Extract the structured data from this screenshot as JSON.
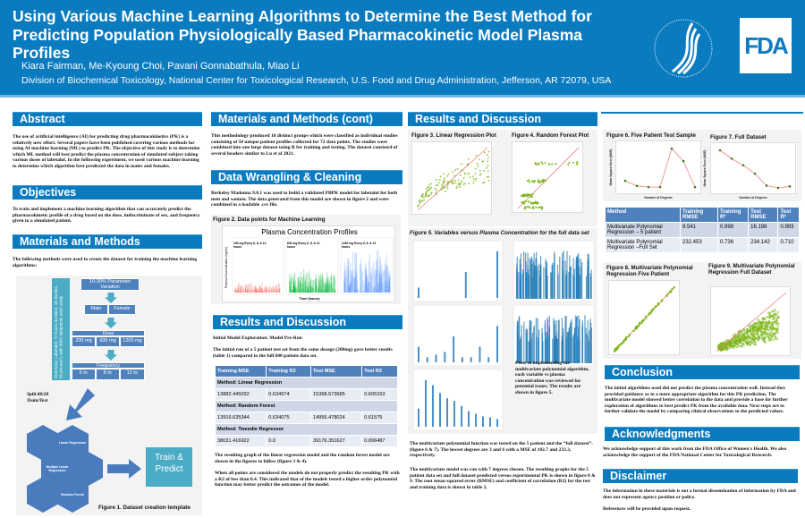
{
  "header": {
    "title": "Using Various Machine Learning Algorithms to Determine the Best Method for Predicting Population Physiologically Based Pharmacokinetic Model Plasma Profiles",
    "authors": "Kiara Fairman, Me-Kyoung Choi, Pavani Gonnabathula, Miao Li",
    "affiliation": "Division of Biochemical Toxicology, National Center for Toxicological Research, U.S. Food and Drug Administration, Jefferson, AR 72079, USA",
    "logo": "FDA",
    "accent": "#0b7bc0"
  },
  "abstract": {
    "heading": "Abstract",
    "text": "The use of artificial intelligence (AI) for predicting drug pharmacokinetics (PK) is a relatively new effort. Several papers have been published covering various methods for using AI machine learning (ML) to predict PK. The objective of this study is to determine which ML method will best predict the plasma concentration of simulated subject taking various doses of labetalol. In the following experiment, we used various machine learning to determine which algorithm best predicted the data in males and females."
  },
  "objectives": {
    "heading": "Objectives",
    "text": "To train and implement a machine learning algorithm that can accurately predict the pharmacokinetic profile of a drug based on the dose, indiscriminate of sex, and frequency given to a simulated patient."
  },
  "methods": {
    "heading": "Materials and Methods",
    "text": "The following methods were used to create the dataset for training the machine learning algorithms:",
    "fig1": {
      "summary": "Summary: Labetalol, 72 hours duration, 18 studies, 50 pts each, with 3600 datapoints each study",
      "variation": "10-30% Parameter Variation",
      "sex": [
        "Male",
        "Female"
      ],
      "dose_label": "Dose",
      "doses": [
        "200 mg",
        "600 mg",
        "1200 mg"
      ],
      "freq_label": "Frequency",
      "freqs": [
        "6 hr",
        "8 hr",
        "12 hr"
      ],
      "split": "Split 80/20 Train/Test",
      "algorithms": [
        "Linear Regression",
        "Multiple Linear Regression",
        "Random Forest"
      ],
      "train": "Train & Predict",
      "caption": "Figure 1. Dataset creation template"
    }
  },
  "methods_cont": {
    "heading": "Materials and Methods (cont)",
    "text": "This methodology produced 18 distinct groups which were classified as individual studies consisting of 50 unique patient profiles collected for 72 data points. The studies were combined into one large dataset using R for training and testing. The dataset consisted of several headers similar to Lu et al 2021."
  },
  "wrangling": {
    "heading": "Data Wrangling & Cleaning",
    "text": "Berkeley Madonna 9.8.1 was used to build a validated PBPK model for labetalol for both men and women. The data generated from this model are shown in figure 2 and were combined in a loadable .csv file.",
    "fig2": {
      "caption": "Figure 2. Data points for Machine Learning",
      "title": "Plasma Concentration Profiles",
      "panels": [
        "200 mg Every 6, 8, & 12 hours",
        "600 mg Every 6, 8, & 12 hours",
        "1200 mg Every 6, 8, & 12 hours"
      ],
      "ylabel": "Plasma Concentration (ng/ml)",
      "xlabel": "Time (hours)",
      "colors": [
        "#f8766d",
        "#00ba38",
        "#619cff"
      ]
    }
  },
  "results1": {
    "heading": "Results and Discussion",
    "subhead": "Initial Model Exploration: Model Pre-Run",
    "intro": "The initial run of a 5 patient test set from the same dosage (200mg) gave better results (table 1) compared to the full 600 patient data set.",
    "table": {
      "headers": [
        "Training MSE",
        "Training R2",
        "Test MSE",
        "Test R2"
      ],
      "groups": [
        {
          "method": "Method: Linear Regression",
          "row": [
            "13882.445032",
            "0.634974",
            "15368.573685",
            "0.605163"
          ]
        },
        {
          "method": "Method: Random Forest",
          "row": [
            "13916.635344",
            "0.634075",
            "14956.478024",
            "0.61575"
          ]
        },
        {
          "method": "Method: Tweedie Regressor",
          "row": [
            "38031.416922",
            "0.0",
            "39176.351627",
            "0.006487"
          ]
        }
      ]
    },
    "p1": "The resulting graph of the linear regression model and the random forest model are shown in the figures to follow (figure 3 & 4).",
    "p2": "When all points are considered the models do not properly predict the resulting PK with a R2 of less than 0.4. This indicated that of the models tested a higher order polynomial function  may better predict the outcomes of the model."
  },
  "results2": {
    "heading": "Results and Discussion",
    "fig3": "Figure 3. Linear Regression Plot",
    "fig4": "Figure 4. Random Forest Plot",
    "fig5": "Figure 5. Variables versus Plasma Concentration for the full data set",
    "fig5_note": "Prior to implementing the multivariate polynomial algorithm, each variable vs plasma concentration was reviewed for potential issues. The results are shown in figure 5.",
    "p1": "The multivariate polynomial function was tested on the 5 patient and the “full dataset”. (figure 6 & 7). The lowest degrees are 3 and 6 with a MSE of 102.7 and 233.3, respectively.",
    "p2": "The multivariate model was ran with 7 degrees chosen. The resulting graphs for the 5 patient data set and full dataset predicted versus experimental PK is shown in figure 8 & 9. The root mean squared error (RMSE) and coefficient of correlation (R2) for the test and training data is shown in table 2."
  },
  "results3": {
    "fig6": "Figure 6. Five Patient Test Sample",
    "fig7": "Figure 7. Full Dataset",
    "xlabel": "Number of Degrees",
    "ylabel": "Mean Square Error (MSE)",
    "table": {
      "headers": [
        "Method",
        "Training RMSE",
        "Training R²",
        "Test RMSE",
        "Test R²"
      ],
      "rows": [
        [
          "Multivariate Polynomial Regression – 5 patient",
          "9.541",
          "0.998",
          "16.198",
          "0.993"
        ],
        [
          "Multivariate Polynomial Regression –Full Set",
          "232.453",
          "0.736",
          "234.142",
          "0.710"
        ]
      ]
    },
    "fig8": "Figure 8. Multivariate Polynomial Regression Five Patient",
    "fig9": "Figure 9. Multivariate Polynomial Regression Full Dataset"
  },
  "conclusion": {
    "heading": "Conclusion",
    "text": "The initial algorithms used did not predict the plasma concentration well. Instead they provided guidance as to a more appropriate algorithm for this PK prediction. The multivariate model showed better correlation to the data and provide a base for further exploration of algorithms to best predict PK from the available data. Next steps are to further validate the model by comparing clinical observations to the predicted values."
  },
  "ack": {
    "heading": "Acknowledgments",
    "text": "We acknowledge support of this work from the FDA Office of Women's Health. We also acknowledge the support of the FDA National Center for Toxicological Research."
  },
  "disclaimer": {
    "heading": "Disclaimer",
    "text": "The information in these materials is not a formal dissemination of information by FDA and does not represent agency position or policy.",
    "refs": "References will be provided upon request."
  }
}
